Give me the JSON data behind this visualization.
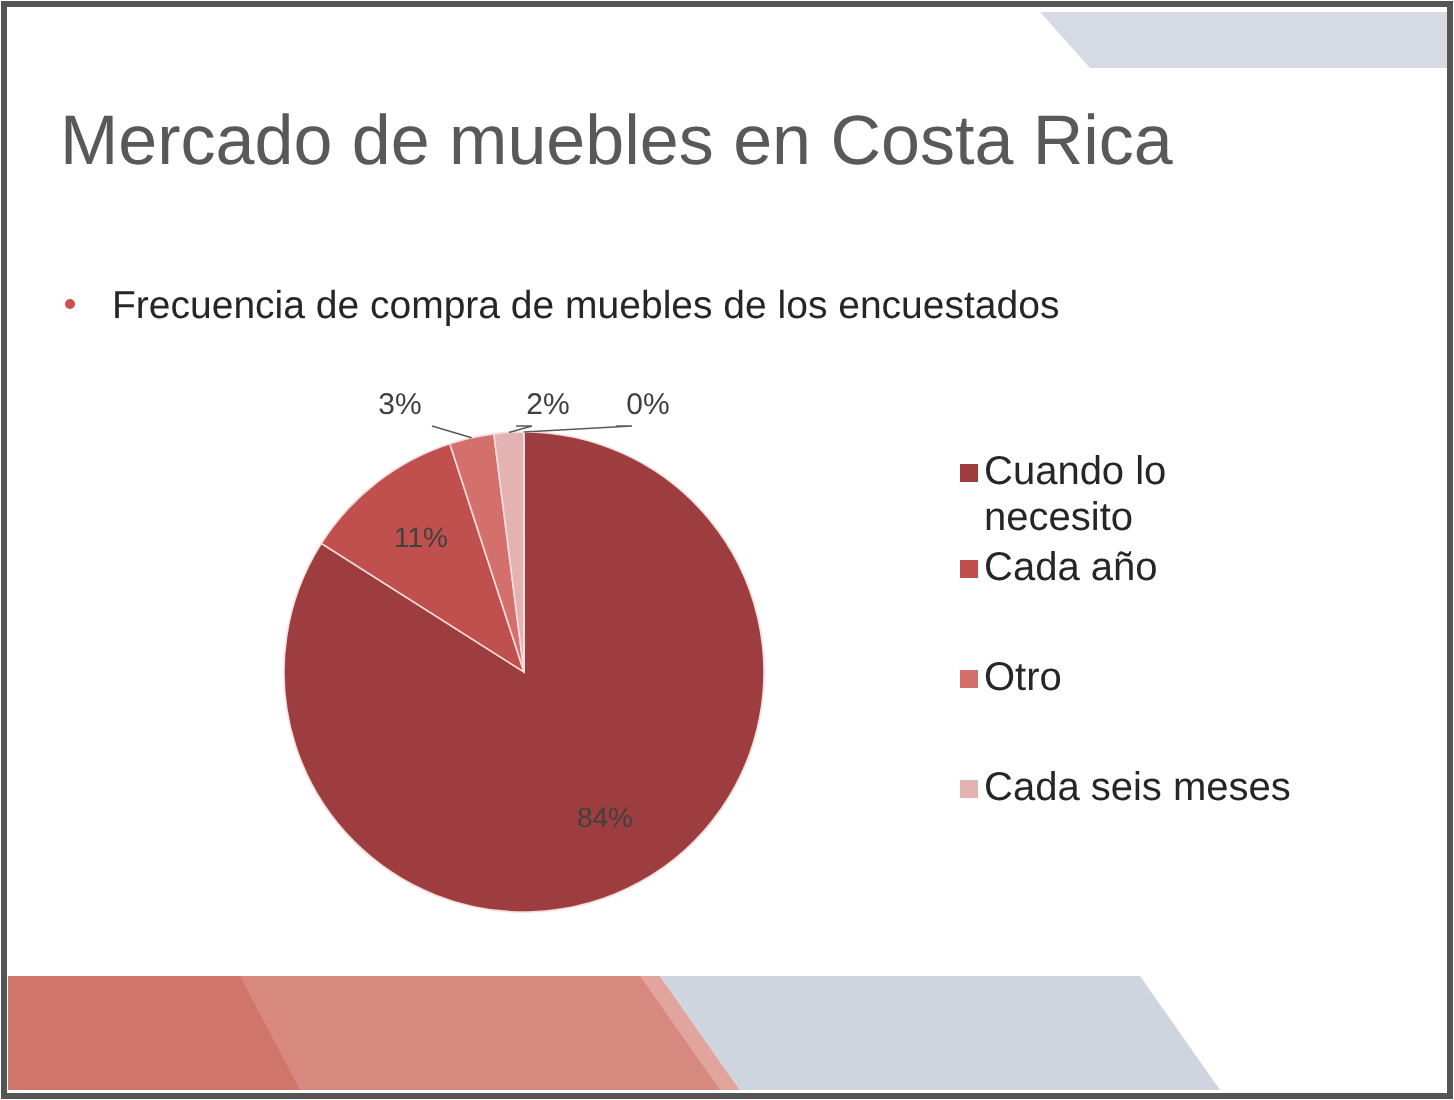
{
  "chart_data": {
    "type": "pie",
    "title": "Mercado de muebles en Costa Rica",
    "subtitle": "Frecuencia de compra de muebles de los encuestados",
    "categories": [
      "Cuando lo necesito",
      "Cada año",
      "Otro",
      "Cada seis meses",
      null
    ],
    "values": [
      84,
      11,
      3,
      2,
      0
    ],
    "colors": [
      "#9e3d40",
      "#c0504d",
      "#d4706b",
      "#e2b3b1",
      "#f0d8d6"
    ],
    "value_labels": [
      "84%",
      "11%",
      "3%",
      "2%",
      "0%"
    ],
    "legend": "right"
  }
}
